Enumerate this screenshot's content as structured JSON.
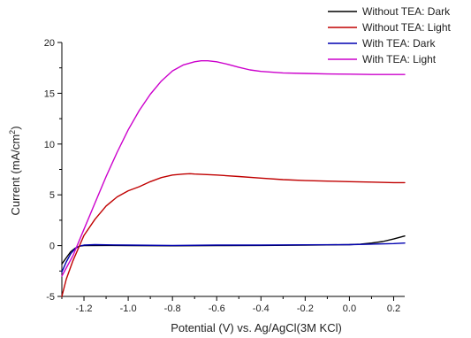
{
  "chart_data": {
    "type": "line",
    "xlabel": "Potential (V) vs. Ag/AgCl(3M KCl)",
    "ylabel": {
      "main": "Current (mA/cm",
      "sup": "2",
      "close": ")"
    },
    "xlim": [
      -1.3,
      0.25
    ],
    "ylim": [
      -5,
      20
    ],
    "xticks": [
      -1.2,
      -1.0,
      -0.8,
      -0.6,
      -0.4,
      -0.2,
      0.0,
      0.2
    ],
    "xtick_labels": [
      "-1.2",
      "-1.0",
      "-0.8",
      "-0.6",
      "-0.4",
      "-0.2",
      "0.0",
      "0.2"
    ],
    "yticks": [
      -5,
      0,
      5,
      10,
      15,
      20
    ],
    "ytick_labels": [
      "-5",
      "0",
      "5",
      "10",
      "15",
      "20"
    ],
    "grid": false,
    "legend_position": "top-right",
    "series": [
      {
        "name": "Without TEA: Dark",
        "color": "#000000",
        "x": [
          -1.3,
          -1.28,
          -1.26,
          -1.24,
          -1.22,
          -1.2,
          -1.1,
          -1.0,
          -0.8,
          -0.6,
          -0.4,
          -0.2,
          0.0,
          0.05,
          0.1,
          0.15,
          0.2,
          0.25
        ],
        "y": [
          -1.8,
          -1.2,
          -0.6,
          -0.25,
          -0.05,
          0.0,
          0.02,
          0.0,
          -0.02,
          0.0,
          0.02,
          0.05,
          0.1,
          0.15,
          0.25,
          0.4,
          0.65,
          0.95
        ]
      },
      {
        "name": "Without TEA: Light",
        "color": "#c00000",
        "x": [
          -1.3,
          -1.28,
          -1.25,
          -1.22,
          -1.2,
          -1.15,
          -1.1,
          -1.05,
          -1.0,
          -0.95,
          -0.9,
          -0.85,
          -0.8,
          -0.75,
          -0.72,
          -0.7,
          -0.6,
          -0.5,
          -0.4,
          -0.3,
          -0.2,
          -0.1,
          0.0,
          0.1,
          0.2,
          0.25
        ],
        "y": [
          -5.0,
          -3.3,
          -1.5,
          0.0,
          1.0,
          2.6,
          3.9,
          4.8,
          5.4,
          5.8,
          6.3,
          6.7,
          6.95,
          7.05,
          7.08,
          7.05,
          6.95,
          6.8,
          6.65,
          6.5,
          6.4,
          6.35,
          6.3,
          6.25,
          6.2,
          6.2
        ]
      },
      {
        "name": "With TEA: Dark",
        "color": "#0000b0",
        "x": [
          -1.3,
          -1.28,
          -1.26,
          -1.24,
          -1.22,
          -1.2,
          -1.15,
          -1.1,
          -1.0,
          -0.8,
          -0.6,
          -0.4,
          -0.2,
          0.0,
          0.1,
          0.2,
          0.25
        ],
        "y": [
          -2.6,
          -1.6,
          -0.8,
          -0.3,
          -0.05,
          0.05,
          0.1,
          0.08,
          0.05,
          0.02,
          0.05,
          0.05,
          0.08,
          0.1,
          0.15,
          0.2,
          0.25
        ]
      },
      {
        "name": "With TEA: Light",
        "color": "#cc00cc",
        "x": [
          -1.3,
          -1.25,
          -1.2,
          -1.15,
          -1.1,
          -1.05,
          -1.0,
          -0.95,
          -0.9,
          -0.85,
          -0.8,
          -0.75,
          -0.7,
          -0.67,
          -0.64,
          -0.6,
          -0.55,
          -0.5,
          -0.45,
          -0.4,
          -0.3,
          -0.2,
          -0.1,
          0.0,
          0.1,
          0.2,
          0.25
        ],
        "y": [
          -3.0,
          -1.0,
          1.6,
          4.2,
          6.8,
          9.2,
          11.4,
          13.3,
          14.9,
          16.2,
          17.2,
          17.8,
          18.1,
          18.2,
          18.2,
          18.1,
          17.85,
          17.55,
          17.3,
          17.15,
          17.0,
          16.95,
          16.9,
          16.88,
          16.85,
          16.85,
          16.85
        ]
      }
    ]
  }
}
